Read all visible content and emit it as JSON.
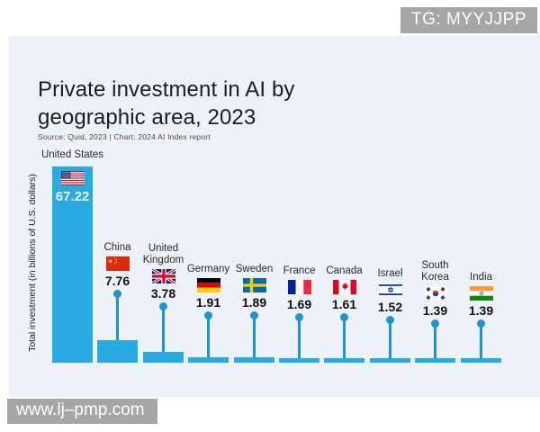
{
  "overlays": {
    "tg_badge": "TG: MYYJJPP",
    "watermark": "www.lj–pmp.com"
  },
  "chart": {
    "title_lines": [
      "Private investment in AI by",
      "geographic area, 2023"
    ],
    "source": "Source: Quid, 2023 | Chart: 2024 AI Index report",
    "ylabel": "Total investment (in billions of U.S. dollars)"
  },
  "colors": {
    "bar": "#29aae1",
    "stem": "#1d93d2",
    "panel_background": "#edf1f9",
    "overlay_gray": "#a6a6a6",
    "value_on_bar": "#ecf8ff"
  },
  "chart_data": {
    "type": "bar",
    "title": "Private investment in AI by geographic area, 2023",
    "source": "Source: Quid, 2023 | Chart: 2024 AI Index report",
    "xlabel": "",
    "ylabel": "Total investment (in billions of U.S. dollars)",
    "categories": [
      "United States",
      "China",
      "United Kingdom",
      "Germany",
      "Sweden",
      "France",
      "Canada",
      "Israel",
      "South Korea",
      "India"
    ],
    "values": [
      67.22,
      7.76,
      3.78,
      1.91,
      1.89,
      1.69,
      1.61,
      1.52,
      1.39,
      1.39
    ],
    "flag_icons": [
      "flag-us-icon",
      "flag-cn-icon",
      "flag-gb-icon",
      "flag-de-icon",
      "flag-se-icon",
      "flag-fr-icon",
      "flag-ca-icon",
      "flag-il-icon",
      "flag-kr-icon",
      "flag-in-icon"
    ],
    "bar_color": "#29aae1",
    "stem_color": "#1d93d2",
    "ylim": [
      0,
      70
    ],
    "grid": false,
    "legend": false,
    "value_labels": "shown above each bar (inside bar for United States)"
  }
}
